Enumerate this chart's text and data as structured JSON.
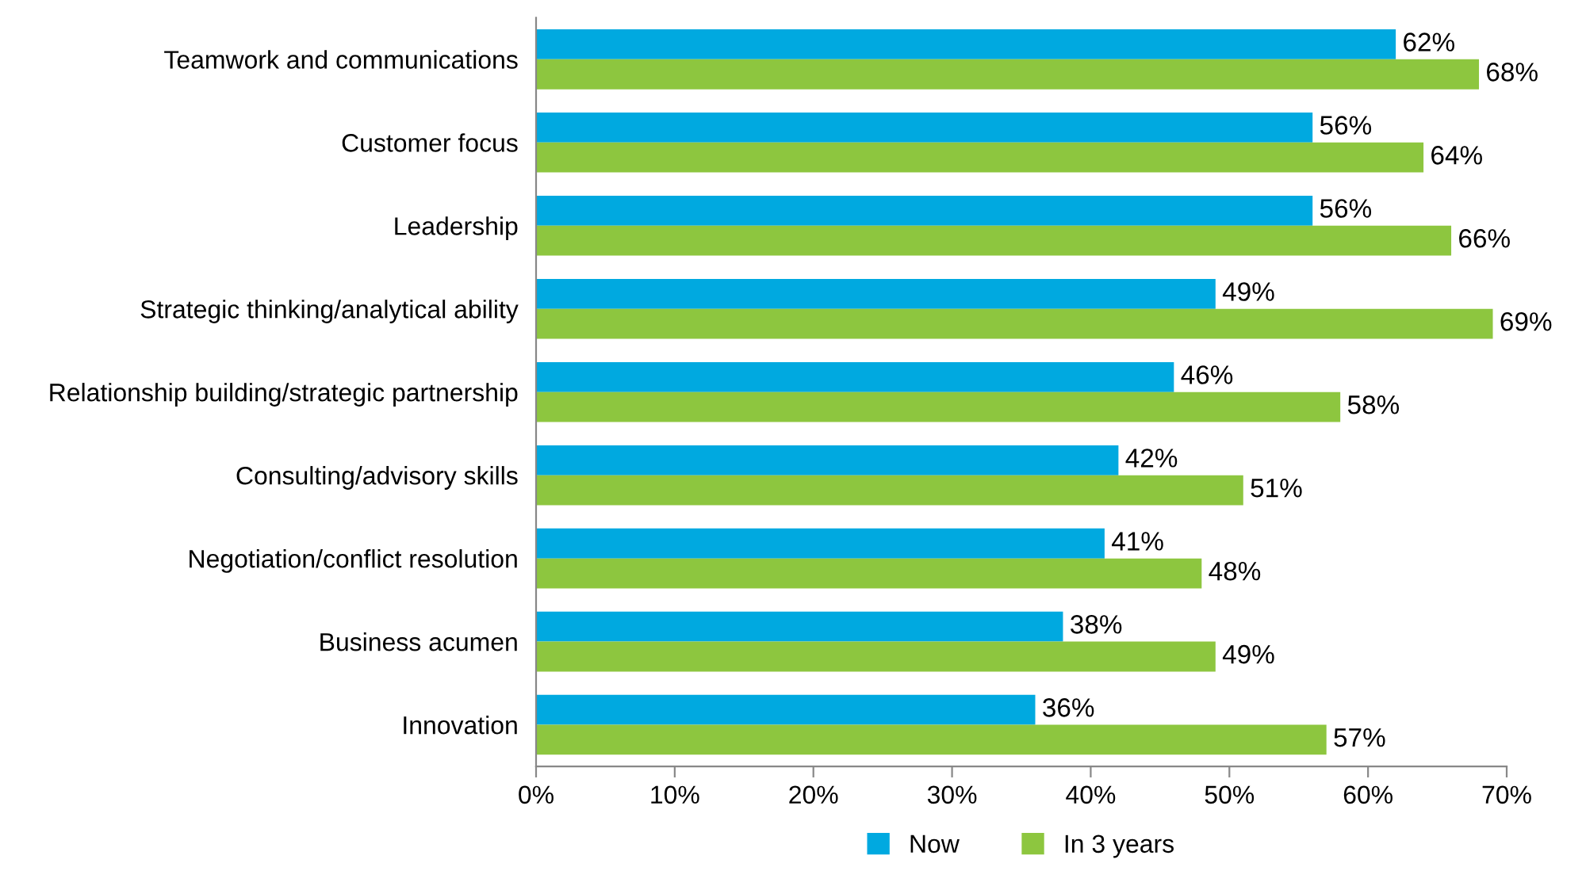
{
  "chart_data": {
    "type": "bar",
    "orientation": "horizontal",
    "categories": [
      "Teamwork and communications",
      "Customer focus",
      "Leadership",
      "Strategic thinking/analytical ability",
      "Relationship building/strategic partnership",
      "Consulting/advisory skills",
      "Negotiation/conflict resolution",
      "Business acumen",
      "Innovation"
    ],
    "series": [
      {
        "name": "Now",
        "color": "#00a9e0",
        "values": [
          62,
          56,
          56,
          49,
          46,
          42,
          41,
          38,
          36
        ],
        "value_labels": [
          "62%",
          "56%",
          "56%",
          "49%",
          "46%",
          "42%",
          "41%",
          "38%",
          "36%"
        ]
      },
      {
        "name": "In 3 years",
        "color": "#8dc63f",
        "values": [
          68,
          64,
          66,
          69,
          58,
          51,
          48,
          49,
          57
        ],
        "value_labels": [
          "68%",
          "64%",
          "66%",
          "69%",
          "58%",
          "51%",
          "48%",
          "49%",
          "57%"
        ]
      }
    ],
    "xlim": [
      0,
      70
    ],
    "xticks": [
      {
        "value": 0,
        "label": "0%"
      },
      {
        "value": 10,
        "label": "10%"
      },
      {
        "value": 20,
        "label": "20%"
      },
      {
        "value": 30,
        "label": "30%"
      },
      {
        "value": 40,
        "label": "40%"
      },
      {
        "value": 50,
        "label": "50%"
      },
      {
        "value": 60,
        "label": "60%"
      },
      {
        "value": 70,
        "label": "70%"
      }
    ],
    "grid": false,
    "legend": "bottom"
  }
}
